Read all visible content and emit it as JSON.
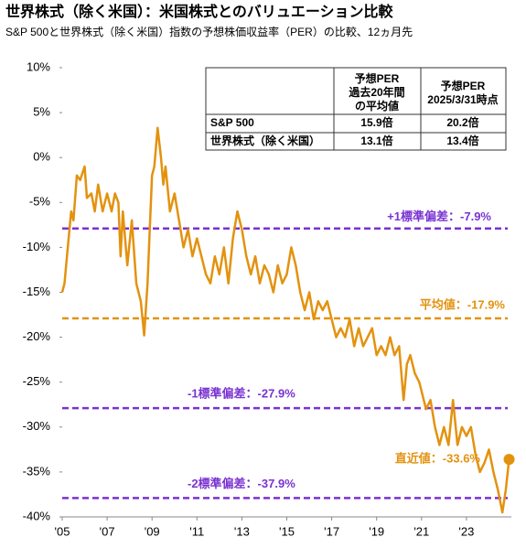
{
  "chart_data": {
    "type": "line",
    "title": "世界株式（除く米国）：米国株式とのバリュエーション比較",
    "subtitle": "S&P 500と世界株式（除く米国）指数の予想株価収益率（PER）の比較、12ヵ月先",
    "xlim": [
      2005,
      2025
    ],
    "xticks": [
      {
        "value": 2005,
        "label": "'05"
      },
      {
        "value": 2007,
        "label": "'07"
      },
      {
        "value": 2009,
        "label": "'09"
      },
      {
        "value": 2011,
        "label": "'11"
      },
      {
        "value": 2013,
        "label": "'13"
      },
      {
        "value": 2015,
        "label": "'15"
      },
      {
        "value": 2017,
        "label": "'17"
      },
      {
        "value": 2019,
        "label": "'19"
      },
      {
        "value": 2021,
        "label": "'21"
      },
      {
        "value": 2023,
        "label": "'23"
      }
    ],
    "ylim": [
      -40,
      10
    ],
    "yticks": [
      {
        "value": 10,
        "label": "10%"
      },
      {
        "value": 5,
        "label": "5%"
      },
      {
        "value": 0,
        "label": "0%"
      },
      {
        "value": -5,
        "label": "-5%"
      },
      {
        "value": -10,
        "label": "-10%"
      },
      {
        "value": -15,
        "label": "-15%"
      },
      {
        "value": -20,
        "label": "-20%"
      },
      {
        "value": -25,
        "label": "-25%"
      },
      {
        "value": -30,
        "label": "-30%"
      },
      {
        "value": -35,
        "label": "-35%"
      },
      {
        "value": -40,
        "label": "-40%"
      }
    ],
    "series": [
      {
        "color": "#e3920f",
        "x": [
          2005.0,
          2005.1,
          2005.25,
          2005.4,
          2005.5,
          2005.65,
          2005.8,
          2006.0,
          2006.1,
          2006.3,
          2006.45,
          2006.6,
          2006.8,
          2007.0,
          2007.2,
          2007.35,
          2007.5,
          2007.6,
          2007.7,
          2007.9,
          2008.1,
          2008.3,
          2008.5,
          2008.65,
          2008.8,
          2008.9,
          2009.0,
          2009.1,
          2009.25,
          2009.4,
          2009.5,
          2009.6,
          2009.8,
          2010.0,
          2010.2,
          2010.4,
          2010.6,
          2010.8,
          2011.0,
          2011.2,
          2011.4,
          2011.6,
          2011.8,
          2012.0,
          2012.2,
          2012.4,
          2012.6,
          2012.8,
          2013.0,
          2013.2,
          2013.4,
          2013.6,
          2013.8,
          2014.0,
          2014.2,
          2014.4,
          2014.6,
          2014.8,
          2015.0,
          2015.2,
          2015.4,
          2015.6,
          2015.8,
          2016.0,
          2016.2,
          2016.4,
          2016.6,
          2016.8,
          2017.0,
          2017.2,
          2017.4,
          2017.6,
          2017.8,
          2018.0,
          2018.2,
          2018.4,
          2018.6,
          2018.8,
          2019.0,
          2019.2,
          2019.4,
          2019.6,
          2019.8,
          2020.0,
          2020.2,
          2020.35,
          2020.5,
          2020.7,
          2020.9,
          2021.0,
          2021.2,
          2021.4,
          2021.6,
          2021.8,
          2022.0,
          2022.2,
          2022.4,
          2022.6,
          2022.8,
          2023.0,
          2023.2,
          2023.4,
          2023.6,
          2023.8,
          2024.0,
          2024.2,
          2024.4,
          2024.6,
          2024.75,
          2024.9
        ],
        "values": [
          -15,
          -14,
          -10,
          -6,
          -7,
          -2,
          -2.5,
          -1,
          -4.5,
          -4,
          -6,
          -3,
          -6,
          -4,
          -6,
          -4,
          -5,
          -11,
          -6,
          -12,
          -7,
          -14,
          -16,
          -19.8,
          -14,
          -8,
          -2,
          -1,
          3.3,
          0,
          -3,
          -1,
          -6,
          -4,
          -7,
          -10,
          -8,
          -11,
          -9,
          -11,
          -13,
          -14,
          -11,
          -13,
          -10,
          -14,
          -9,
          -6,
          -8,
          -11,
          -13,
          -11,
          -14,
          -12,
          -13,
          -15,
          -12,
          -14,
          -13,
          -10,
          -12,
          -15,
          -17,
          -15,
          -18,
          -16,
          -17,
          -16,
          -18,
          -20,
          -19,
          -20,
          -18,
          -21,
          -19,
          -21,
          -20,
          -19,
          -22,
          -21,
          -22,
          -20,
          -22,
          -21,
          -27,
          -23,
          -22,
          -24,
          -25,
          -26,
          -28,
          -27,
          -30,
          -32,
          -30,
          -32,
          -27,
          -32,
          -30,
          -31,
          -30,
          -33,
          -35,
          -34,
          -32.5,
          -35,
          -37,
          -39.5,
          -37,
          -33.6
        ]
      }
    ],
    "reference_lines": [
      {
        "value": -7.9,
        "label": "+1標準偏差：-7.9%",
        "color": "#7a33d1"
      },
      {
        "value": -17.9,
        "label": "平均値：-17.9%",
        "color": "#e3920f"
      },
      {
        "value": -27.9,
        "label": "-1標準偏差：-27.9%",
        "color": "#7a33d1"
      },
      {
        "value": -37.9,
        "label": "-2標準偏差：-37.9%",
        "color": "#7a33d1"
      }
    ],
    "latest": {
      "value": -33.6,
      "label": "直近値：-33.6%"
    },
    "table": {
      "columns": [
        [
          "予想PER",
          "過去20年間",
          "の平均値"
        ],
        [
          "予想PER",
          "2025/3/31時点"
        ]
      ],
      "rows": [
        [
          "S&P 500",
          "15.9倍",
          "20.2倍"
        ],
        [
          "世界株式（除く米国）",
          "13.1倍",
          "13.4倍"
        ]
      ]
    }
  }
}
